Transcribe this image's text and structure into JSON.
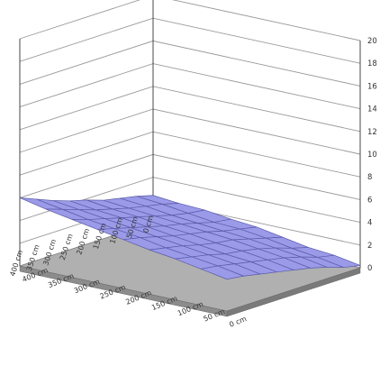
{
  "chart_data": {
    "type": "surface3d",
    "title": "",
    "zlim": [
      0,
      20
    ],
    "z_ticks": [
      0,
      2,
      4,
      6,
      8,
      10,
      12,
      14,
      16,
      18,
      20
    ],
    "x_labels": [
      "0 cm",
      "50 cm",
      "100 cm",
      "150 cm",
      "200 cm",
      "250 cm",
      "300 cm",
      "350 cm",
      "400 cm"
    ],
    "y_labels": [
      "0 cm",
      "50 cm",
      "100 cm",
      "150 cm",
      "200 cm",
      "250 cm",
      "300 cm",
      "350 cm",
      "400 cm"
    ],
    "grid": true,
    "surface": {
      "z": [
        [
          2.4,
          2.2,
          2.1,
          1.8,
          1.6,
          1.2,
          0.8,
          0.6,
          0.2
        ],
        [
          2.8,
          2.6,
          2.3,
          2.0,
          1.9,
          1.6,
          1.2,
          0.9,
          0.5
        ],
        [
          3.1,
          2.9,
          2.6,
          2.4,
          2.2,
          2.0,
          1.7,
          1.4,
          1.0
        ],
        [
          3.4,
          3.2,
          3.0,
          2.8,
          2.6,
          2.4,
          2.1,
          1.8,
          1.4
        ],
        [
          3.9,
          3.6,
          3.4,
          3.1,
          2.9,
          2.6,
          2.4,
          2.1,
          1.7
        ],
        [
          4.3,
          4.0,
          3.8,
          3.5,
          3.2,
          2.9,
          2.6,
          2.4,
          2.0
        ],
        [
          4.8,
          4.5,
          4.2,
          3.9,
          3.6,
          3.3,
          3.0,
          2.7,
          2.3
        ],
        [
          5.4,
          5.0,
          4.6,
          4.3,
          4.0,
          3.6,
          3.3,
          3.0,
          2.6
        ],
        [
          6.0,
          5.5,
          5.1,
          4.7,
          4.3,
          3.9,
          3.6,
          3.2,
          2.8
        ]
      ],
      "fill": "#9a9ae8",
      "stroke": "#5a5aa8"
    },
    "base_fill": "#8c8c8c",
    "floor_fill": "#b0b0b0",
    "wall_line": "#333333",
    "grid_color": "#9a9a9a"
  }
}
